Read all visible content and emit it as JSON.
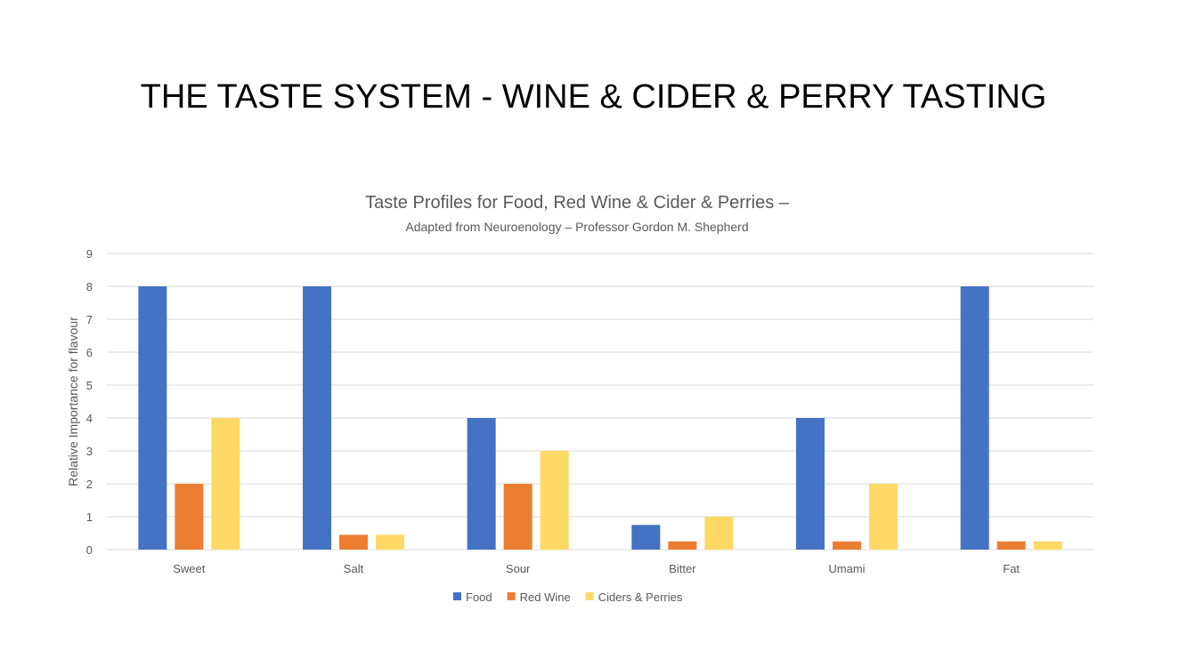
{
  "slide_title": "THE TASTE SYSTEM - WINE & CIDER & PERRY TASTING",
  "chart_data": {
    "type": "bar",
    "title": "Taste Profiles for Food, Red Wine & Cider & Perries  –",
    "subtitle": "Adapted from Neuroenology – Professor Gordon M. Shepherd",
    "xlabel": "",
    "ylabel": "Relative Importance for flavour",
    "ylim": [
      0,
      9
    ],
    "yticks": [
      0,
      1,
      2,
      3,
      4,
      5,
      6,
      7,
      8,
      9
    ],
    "grid": true,
    "legend_position": "bottom",
    "categories": [
      "Sweet",
      "Salt",
      "Sour",
      "Bitter",
      "Umami",
      "Fat"
    ],
    "series": [
      {
        "name": "Food",
        "color": "#4472C4",
        "values": [
          8,
          8,
          4,
          0.75,
          4,
          8
        ]
      },
      {
        "name": "Red Wine",
        "color": "#ED7D31",
        "values": [
          2,
          0.45,
          2,
          0.25,
          0.25,
          0.25
        ]
      },
      {
        "name": "Ciders & Perries",
        "color": "#FFD966",
        "values": [
          4,
          0.45,
          3,
          1,
          2,
          0.25
        ]
      }
    ]
  }
}
